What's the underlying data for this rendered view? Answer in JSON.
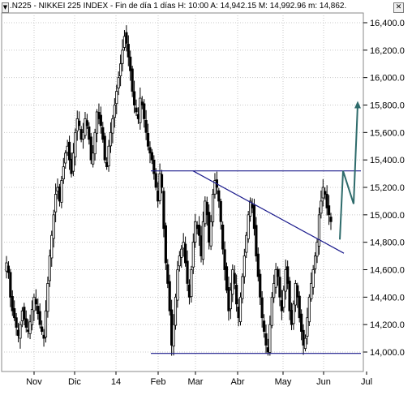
{
  "header": {
    "title": ".N225 - NIKKEI 225 INDEX - Fin de día 1 días  H: 10:00  A: 14,942.15  M: 14,992.96  m: 14,862.",
    "close_label": "✕",
    "down_label": "▼"
  },
  "chart_data": {
    "type": "candlestick",
    "ylim": [
      13850,
      16500
    ],
    "y_ticks": [
      14000,
      14200,
      14400,
      14600,
      14800,
      15000,
      15200,
      15400,
      15600,
      15800,
      16000,
      16200,
      16400
    ],
    "y_tick_labels": [
      "14,000.0",
      "14,200.0",
      "14,400.0",
      "14,600.0",
      "14,800.0",
      "15,000.0",
      "15,200.0",
      "15,400.0",
      "15,600.0",
      "15,800.0",
      "16,000.0",
      "16,200.0",
      "16,400.0"
    ],
    "x_labels": [
      "Nov",
      "Dic",
      "14",
      "Feb",
      "Mar",
      "Abr",
      "May",
      "Jun",
      "Jul"
    ],
    "grid": true,
    "closes": [
      14650,
      14580,
      14400,
      14300,
      14250,
      14180,
      14120,
      14200,
      14300,
      14240,
      14180,
      14150,
      14220,
      14310,
      14400,
      14350,
      14280,
      14200,
      14150,
      14100,
      14300,
      14500,
      14700,
      14850,
      15000,
      15150,
      15200,
      15100,
      15250,
      15350,
      15450,
      15500,
      15400,
      15300,
      15450,
      15600,
      15700,
      15650,
      15550,
      15600,
      15700,
      15650,
      15550,
      15400,
      15450,
      15600,
      15750,
      15700,
      15650,
      15550,
      15400,
      15350,
      15500,
      15600,
      15700,
      15800,
      15900,
      16000,
      16100,
      16200,
      16300,
      16250,
      16150,
      16050,
      15900,
      15800,
      15750,
      15700,
      15850,
      15800,
      15700,
      15600,
      15500,
      15450,
      15400,
      15300,
      15200,
      15100,
      15300,
      15200,
      14900,
      14650,
      14500,
      14300,
      14050,
      14200,
      14400,
      14600,
      14700,
      14750,
      14800,
      14650,
      14500,
      14400,
      14600,
      14800,
      14950,
      14900,
      14850,
      14700,
      14950,
      15100,
      15000,
      14800,
      14950,
      15150,
      15250,
      15200,
      15100,
      14950,
      14750,
      14600,
      14450,
      14300,
      14450,
      14600,
      14500,
      14350,
      14250,
      14400,
      14550,
      14700,
      14850,
      15000,
      15100,
      15050,
      14900,
      14700,
      14550,
      14400,
      14250,
      14150,
      14050,
      14000,
      14200,
      14400,
      14500,
      14600,
      14550,
      14400,
      14300,
      14450,
      14600,
      14500,
      14300,
      14200,
      14350,
      14500,
      14400,
      14250,
      14150,
      14050,
      14100,
      14250,
      14400,
      14500,
      14600,
      14700,
      14800,
      15000,
      15100,
      15200,
      15150,
      15050,
      15000,
      14950
    ],
    "resistance": 15320,
    "support": 13990,
    "trendline_start": 15320,
    "trendline_end": 14720,
    "projection": [
      14820,
      15320,
      15080,
      15800
    ]
  }
}
